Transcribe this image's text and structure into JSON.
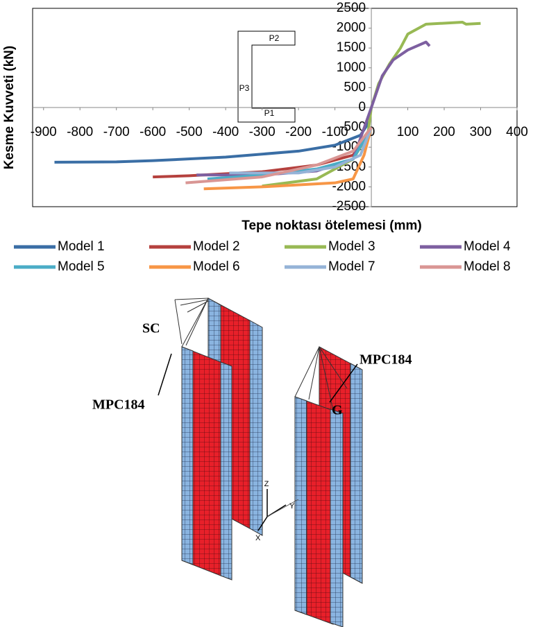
{
  "chart_data": {
    "type": "line",
    "y_label": "Kesme Kuvveti (kN)",
    "x_label": "Tepe noktası ötelemesi (mm)",
    "xlim": [
      -930,
      400
    ],
    "ylim": [
      -2500,
      2500
    ],
    "xticks": [
      -900,
      -800,
      -700,
      -600,
      -500,
      -400,
      -300,
      -200,
      -100,
      0,
      100,
      200,
      300,
      400
    ],
    "yticks": [
      -2500,
      -2000,
      -1500,
      -1000,
      -500,
      0,
      500,
      1000,
      1500,
      2000,
      2500
    ],
    "inset_labels": [
      "P2",
      "P3",
      "P1"
    ],
    "series": [
      {
        "name": "Model 1",
        "color": "#3a6ea5",
        "x": [
          -870,
          -700,
          -600,
          -400,
          -200,
          -100,
          -30,
          -5
        ],
        "values": [
          -1380,
          -1370,
          -1340,
          -1250,
          -1100,
          -950,
          -700,
          -350
        ]
      },
      {
        "name": "Model 2",
        "color": "#b5413e",
        "x": [
          -600,
          -500,
          -300,
          -150,
          -50,
          0
        ],
        "values": [
          -1750,
          -1720,
          -1620,
          -1450,
          -1200,
          -500
        ]
      },
      {
        "name": "Model 3",
        "color": "#98b954",
        "x": [
          -300,
          -150,
          -50,
          -10,
          0,
          20,
          50,
          80,
          100,
          150,
          250,
          260,
          300
        ],
        "values": [
          -1980,
          -1800,
          -1300,
          -700,
          0,
          600,
          1100,
          1500,
          1850,
          2100,
          2150,
          2100,
          2120
        ]
      },
      {
        "name": "Model 4",
        "color": "#7d5fa0",
        "x": [
          -480,
          -300,
          -150,
          -50,
          0,
          30,
          60,
          100,
          150,
          160
        ],
        "values": [
          -1700,
          -1700,
          -1600,
          -1300,
          0,
          800,
          1200,
          1450,
          1650,
          1550
        ]
      },
      {
        "name": "Model 5",
        "color": "#4bacc6",
        "x": [
          -450,
          -300,
          -150,
          -50,
          0
        ],
        "values": [
          -1800,
          -1700,
          -1550,
          -1300,
          -500
        ]
      },
      {
        "name": "Model 6",
        "color": "#f79646",
        "x": [
          -460,
          -300,
          -100,
          -50,
          -20,
          0
        ],
        "values": [
          -2050,
          -2000,
          -1900,
          -1800,
          -1200,
          -500
        ]
      },
      {
        "name": "Model 7",
        "color": "#95b3d7",
        "x": [
          -390,
          -200,
          -100,
          -30,
          0
        ],
        "values": [
          -1650,
          -1650,
          -1500,
          -1200,
          -500
        ]
      },
      {
        "name": "Model 8",
        "color": "#d99694",
        "x": [
          -510,
          -300,
          -150,
          -50,
          0
        ],
        "values": [
          -1900,
          -1750,
          -1450,
          -1100,
          -500
        ]
      }
    ]
  },
  "figure_labels": {
    "sc": "SC",
    "mpc_left": "MPC184",
    "mpc_right": "MPC184",
    "g": "G",
    "z": "Z",
    "y": "Y",
    "x": "X"
  }
}
